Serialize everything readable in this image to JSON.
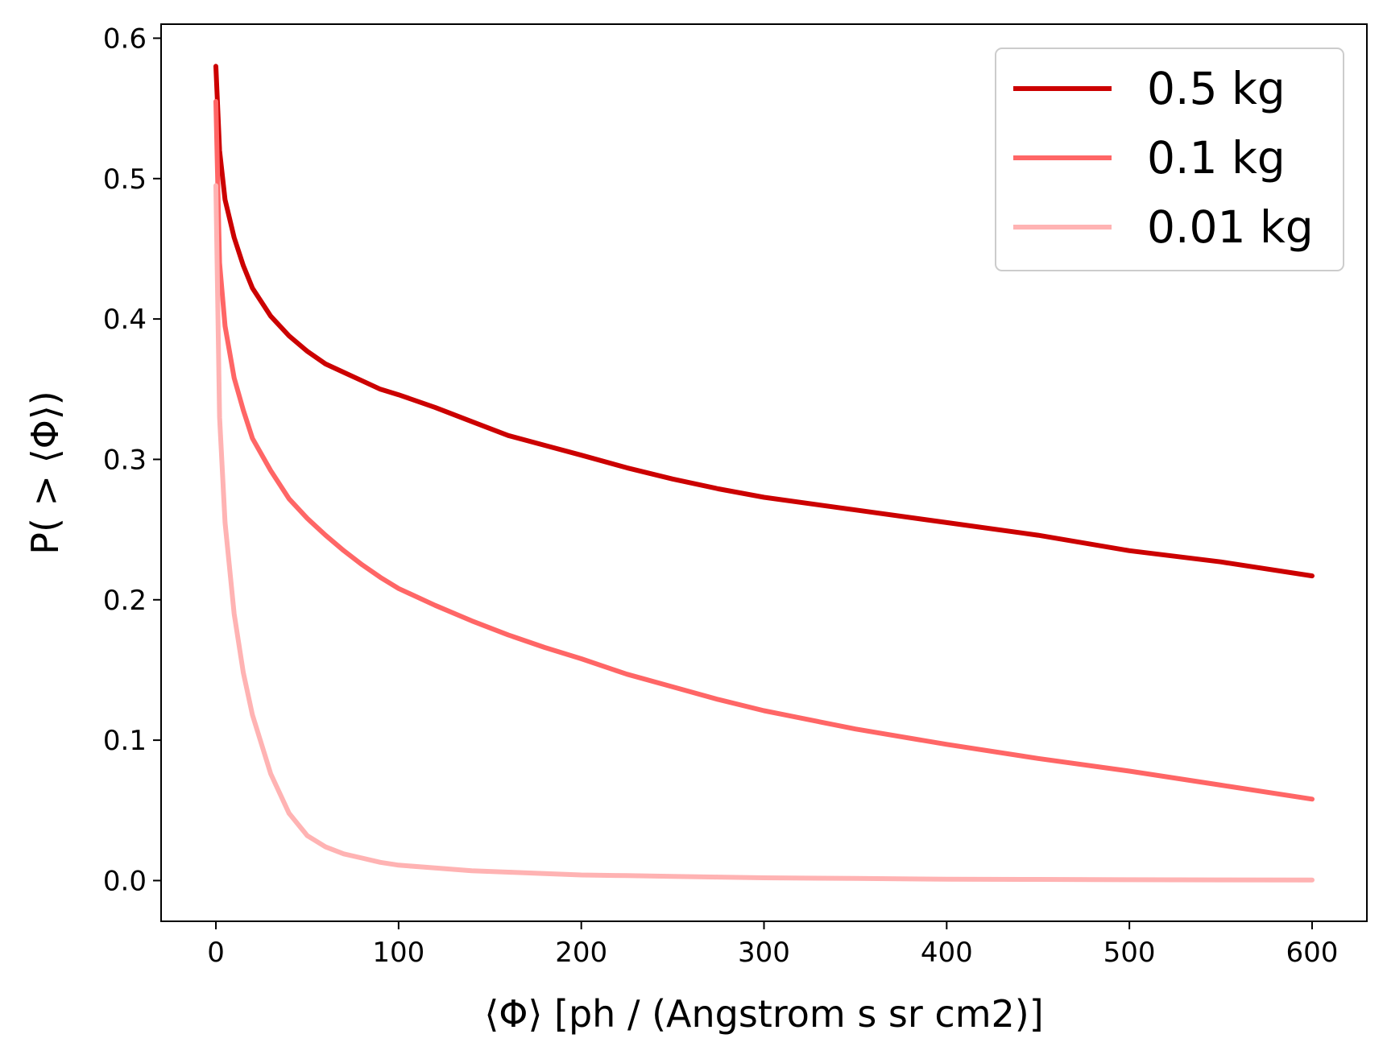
{
  "chart_data": {
    "type": "line",
    "title": "",
    "xlabel": "⟨Φ⟩  [ph / (Angstrom s sr cm2)]",
    "ylabel": "P( > ⟨Φ⟩)",
    "xlim": [
      -30,
      630
    ],
    "ylim": [
      -0.029,
      0.61
    ],
    "xticks": [
      0,
      100,
      200,
      300,
      400,
      500,
      600
    ],
    "xtick_labels": [
      "0",
      "100",
      "200",
      "300",
      "400",
      "500",
      "600"
    ],
    "yticks": [
      0.0,
      0.1,
      0.2,
      0.3,
      0.4,
      0.5,
      0.6
    ],
    "ytick_labels": [
      "0.0",
      "0.1",
      "0.2",
      "0.3",
      "0.4",
      "0.5",
      "0.6"
    ],
    "grid": false,
    "legend_position": "top-right",
    "x": [
      0,
      2,
      5,
      10,
      15,
      20,
      30,
      40,
      50,
      60,
      70,
      80,
      90,
      100,
      120,
      140,
      160,
      180,
      200,
      225,
      250,
      275,
      300,
      350,
      400,
      450,
      500,
      550,
      600
    ],
    "series": [
      {
        "name": "0.5 kg",
        "color": "#cc0000",
        "values": [
          0.58,
          0.52,
          0.485,
          0.458,
          0.438,
          0.422,
          0.402,
          0.388,
          0.377,
          0.368,
          0.362,
          0.356,
          0.35,
          0.346,
          0.337,
          0.327,
          0.317,
          0.31,
          0.303,
          0.294,
          0.286,
          0.279,
          0.273,
          0.264,
          0.255,
          0.246,
          0.235,
          0.227,
          0.217
        ]
      },
      {
        "name": "0.1 kg",
        "color": "#ff6666",
        "values": [
          0.555,
          0.44,
          0.395,
          0.358,
          0.335,
          0.315,
          0.292,
          0.272,
          0.258,
          0.246,
          0.235,
          0.225,
          0.216,
          0.208,
          0.196,
          0.185,
          0.175,
          0.166,
          0.158,
          0.147,
          0.138,
          0.129,
          0.121,
          0.108,
          0.097,
          0.087,
          0.078,
          0.068,
          0.058
        ]
      },
      {
        "name": "0.01 kg",
        "color": "#ffb3b3",
        "values": [
          0.495,
          0.33,
          0.255,
          0.19,
          0.148,
          0.118,
          0.076,
          0.048,
          0.032,
          0.024,
          0.019,
          0.016,
          0.013,
          0.011,
          0.009,
          0.007,
          0.006,
          0.005,
          0.004,
          0.0035,
          0.003,
          0.0025,
          0.002,
          0.0015,
          0.001,
          0.0008,
          0.0006,
          0.0005,
          0.0004
        ]
      }
    ]
  }
}
